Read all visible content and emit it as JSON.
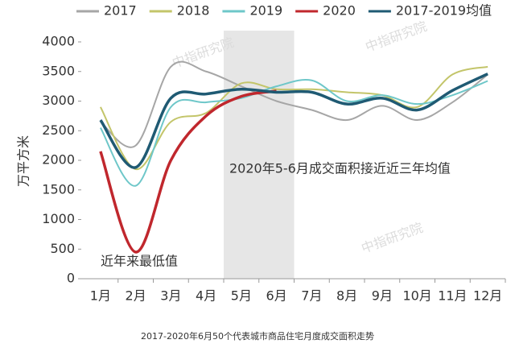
{
  "chart_data": {
    "type": "line",
    "categories": [
      "1月",
      "2月",
      "3月",
      "4月",
      "5月",
      "6月",
      "7月",
      "8月",
      "9月",
      "10月",
      "11月",
      "12月"
    ],
    "series": [
      {
        "name": "2017",
        "color": "#a6a6a6",
        "values": [
          2650,
          2250,
          3580,
          3500,
          3250,
          3000,
          2850,
          2680,
          2920,
          2680,
          2980,
          3450
        ]
      },
      {
        "name": "2018",
        "color": "#c3c56a",
        "values": [
          2900,
          1850,
          2650,
          2800,
          3300,
          3200,
          3200,
          3150,
          3100,
          2900,
          3450,
          3580
        ]
      },
      {
        "name": "2019",
        "color": "#6ec7c9",
        "values": [
          2550,
          1570,
          2900,
          2980,
          3050,
          3250,
          3350,
          3000,
          3100,
          2950,
          3100,
          3340
        ]
      },
      {
        "name": "2020",
        "color": "#c0272d",
        "values": [
          2150,
          450,
          2000,
          2750,
          3080,
          3170,
          null,
          null,
          null,
          null,
          null,
          null
        ]
      },
      {
        "name": "2017-2019均值",
        "color": "#1f5a73",
        "values": [
          2680,
          1880,
          3050,
          3120,
          3200,
          3150,
          3150,
          2950,
          3050,
          2850,
          3180,
          3460
        ]
      }
    ],
    "ylim": [
      0,
      4000
    ],
    "yticks": [
      0,
      500,
      1000,
      1500,
      2000,
      2500,
      3000,
      3500,
      4000
    ],
    "y_label": "万平方米",
    "highlight": [
      "5月",
      "6月"
    ],
    "annotations": [
      "2020年5-6月成交面积接近近三年均值",
      "近年来最低值"
    ],
    "watermarks": [
      "中指研究院",
      "中指研究院",
      "中指研究院"
    ],
    "caption": "2017-2020年6月50个代表城市商品住宅月度成交面积走势"
  }
}
